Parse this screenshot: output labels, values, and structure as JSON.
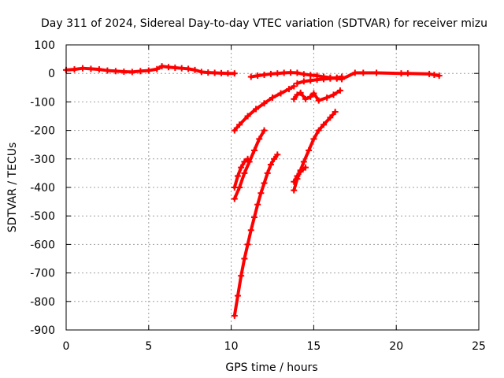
{
  "chart_data": {
    "type": "scatter",
    "title": "Day 311 of 2024, Sidereal Day-to-day VTEC variation (SDTVAR) for receiver mizu",
    "xlabel": "GPS time / hours",
    "ylabel": "SDTVAR / TECUs",
    "xlim": [
      0,
      25
    ],
    "ylim": [
      -900,
      100
    ],
    "xticks": [
      "0",
      "5",
      "10",
      "15",
      "20",
      "25"
    ],
    "yticks": [
      "100",
      "0",
      "-100",
      "-200",
      "-300",
      "-400",
      "-500",
      "-600",
      "-700",
      "-800",
      "-900"
    ],
    "grid": true,
    "marker": "plus",
    "colors": {
      "series": "#ff0000",
      "grid": "#a0a0a0",
      "axis": "#000000"
    },
    "series": [
      {
        "x": [
          0.0,
          0.5,
          1.0,
          1.5,
          2.0,
          2.5,
          3.0,
          3.5,
          4.0,
          4.5,
          5.0,
          5.5,
          5.8,
          6.2,
          6.6,
          7.0,
          7.4,
          7.8,
          8.2,
          8.6,
          9.0,
          9.4,
          9.8,
          10.2
        ],
        "y": [
          12,
          14,
          18,
          16,
          14,
          10,
          8,
          6,
          5,
          8,
          10,
          15,
          25,
          22,
          20,
          18,
          16,
          12,
          5,
          3,
          2,
          1,
          0,
          0
        ]
      },
      {
        "x": [
          11.2,
          11.6,
          12.0,
          12.4,
          12.8,
          13.2,
          13.6,
          14.0,
          14.4,
          14.8,
          15.2,
          15.6,
          16.0,
          16.4,
          16.7,
          17.5,
          18.0,
          18.8,
          20.3,
          20.7,
          22.0,
          22.3,
          22.6
        ],
        "y": [
          -12,
          -8,
          -5,
          -2,
          0,
          2,
          3,
          2,
          -3,
          -6,
          -8,
          -12,
          -15,
          -18,
          -20,
          2,
          2,
          2,
          0,
          0,
          -2,
          -5,
          -8
        ]
      },
      {
        "x": [
          14.0,
          14.4,
          14.8,
          15.2,
          15.6,
          16.0,
          16.4,
          16.7
        ],
        "y": [
          -35,
          -28,
          -25,
          -22,
          -20,
          -18,
          -15,
          -12
        ]
      },
      {
        "x": [
          10.2,
          10.5,
          11.0,
          11.5,
          12.0,
          12.5,
          13.0,
          13.5,
          13.8
        ],
        "y": [
          -200,
          -180,
          -150,
          -125,
          -105,
          -85,
          -70,
          -55,
          -45
        ]
      },
      {
        "x": [
          13.8,
          14.0,
          14.2,
          14.5,
          14.8,
          15.0,
          15.3,
          15.8,
          16.2,
          16.6
        ],
        "y": [
          -90,
          -75,
          -68,
          -90,
          -82,
          -70,
          -95,
          -85,
          -75,
          -60
        ]
      },
      {
        "x": [
          10.2,
          10.4,
          10.6,
          10.8,
          11.0
        ],
        "y": [
          -400,
          -360,
          -330,
          -310,
          -300
        ]
      },
      {
        "x": [
          10.2,
          10.5,
          10.8,
          11.1,
          11.4,
          11.7,
          12.0
        ],
        "y": [
          -440,
          -400,
          -350,
          -310,
          -270,
          -230,
          -200
        ]
      },
      {
        "x": [
          10.2,
          10.4,
          10.6,
          10.8,
          11.0,
          11.2,
          11.4,
          11.6,
          11.8,
          12.0,
          12.2,
          12.4,
          12.6,
          12.8
        ],
        "y": [
          -850,
          -780,
          -710,
          -650,
          -600,
          -550,
          -505,
          -460,
          -420,
          -385,
          -350,
          -320,
          -300,
          -285
        ]
      },
      {
        "x": [
          13.8,
          14.0,
          14.2,
          14.4,
          14.7,
          15.0,
          15.3,
          15.6,
          16.0,
          16.3
        ],
        "y": [
          -410,
          -370,
          -340,
          -310,
          -270,
          -230,
          -200,
          -180,
          -155,
          -135
        ]
      },
      {
        "x": [
          13.8,
          14.0,
          14.2,
          14.5
        ],
        "y": [
          -380,
          -360,
          -345,
          -330
        ]
      }
    ]
  }
}
